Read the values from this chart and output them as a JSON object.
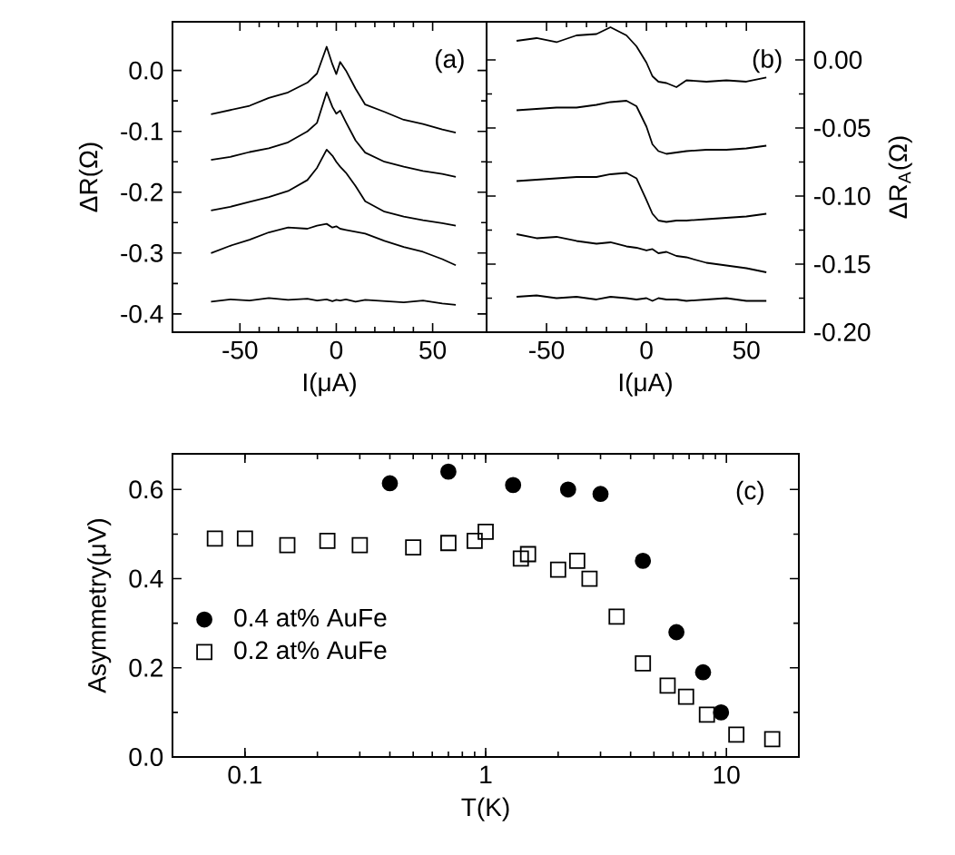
{
  "chart_data": [
    {
      "type": "line",
      "xlabel": "I(μA)",
      "ylabel": "ΔR(Ω)",
      "annotations": [
        "(a)"
      ],
      "xlim": [
        -85,
        78
      ],
      "ylim": [
        -0.43,
        0.08
      ],
      "xticks": [
        -50,
        0,
        50
      ],
      "yticks": [
        {
          "value": 0,
          "label": "0.0"
        },
        -0.1,
        -0.2,
        -0.3,
        -0.4
      ],
      "grid": false,
      "legend": false,
      "marker": "none",
      "line_style": "solid",
      "series": [
        {
          "color": "#000000",
          "x": [
            -65,
            -55,
            -45,
            -35,
            -25,
            -15,
            -10,
            -5,
            -2,
            0,
            2,
            5,
            10,
            15,
            25,
            35,
            45,
            55,
            62
          ],
          "values": [
            -0.072,
            -0.065,
            -0.058,
            -0.045,
            -0.036,
            -0.02,
            -0.005,
            0.039,
            0.01,
            -0.006,
            0.014,
            0.0,
            -0.03,
            -0.056,
            -0.068,
            -0.081,
            -0.088,
            -0.097,
            -0.102
          ]
        },
        {
          "color": "#000000",
          "x": [
            -65,
            -55,
            -45,
            -35,
            -25,
            -15,
            -10,
            -5,
            -2,
            0,
            2,
            5,
            10,
            15,
            25,
            35,
            45,
            55,
            62
          ],
          "values": [
            -0.147,
            -0.142,
            -0.134,
            -0.128,
            -0.118,
            -0.1,
            -0.086,
            -0.036,
            -0.06,
            -0.071,
            -0.066,
            -0.085,
            -0.115,
            -0.135,
            -0.15,
            -0.158,
            -0.165,
            -0.17,
            -0.175
          ]
        },
        {
          "color": "#000000",
          "x": [
            -65,
            -55,
            -45,
            -35,
            -25,
            -15,
            -10,
            -5,
            -2,
            0,
            2,
            5,
            10,
            15,
            25,
            35,
            45,
            55,
            62
          ],
          "values": [
            -0.23,
            -0.224,
            -0.216,
            -0.208,
            -0.198,
            -0.18,
            -0.16,
            -0.13,
            -0.14,
            -0.15,
            -0.158,
            -0.168,
            -0.19,
            -0.215,
            -0.232,
            -0.24,
            -0.246,
            -0.251,
            -0.255
          ]
        },
        {
          "color": "#000000",
          "x": [
            -65,
            -55,
            -45,
            -35,
            -25,
            -15,
            -10,
            -5,
            -2,
            0,
            2,
            5,
            10,
            15,
            25,
            35,
            45,
            55,
            62
          ],
          "values": [
            -0.3,
            -0.288,
            -0.278,
            -0.266,
            -0.258,
            -0.26,
            -0.255,
            -0.252,
            -0.258,
            -0.256,
            -0.26,
            -0.262,
            -0.265,
            -0.268,
            -0.28,
            -0.29,
            -0.298,
            -0.31,
            -0.32
          ]
        },
        {
          "color": "#000000",
          "x": [
            -65,
            -55,
            -45,
            -35,
            -25,
            -15,
            -10,
            -5,
            -2,
            0,
            2,
            5,
            10,
            15,
            25,
            35,
            45,
            55,
            62
          ],
          "values": [
            -0.38,
            -0.376,
            -0.378,
            -0.374,
            -0.377,
            -0.375,
            -0.378,
            -0.376,
            -0.379,
            -0.377,
            -0.378,
            -0.376,
            -0.38,
            -0.377,
            -0.379,
            -0.381,
            -0.378,
            -0.383,
            -0.385
          ]
        }
      ]
    },
    {
      "type": "line",
      "xlabel": "I(μA)",
      "y2label": "ΔR$_{A}$(Ω)",
      "annotations": [
        "(b)"
      ],
      "xlim": [
        -80,
        79
      ],
      "y2lim": [
        -0.2,
        0.028
      ],
      "xticks": [
        -50,
        0,
        50
      ],
      "y2ticks": [
        {
          "value": 0,
          "label": "0.00"
        },
        -0.05,
        {
          "value": -0.1,
          "label": "-0.10"
        },
        -0.15,
        {
          "value": -0.2,
          "label": "-0.20"
        }
      ],
      "grid": false,
      "legend": false,
      "marker": "none",
      "line_style": "solid",
      "series": [
        {
          "color": "#000000",
          "axis": "y2",
          "x": [
            -65,
            -55,
            -45,
            -35,
            -25,
            -18,
            -10,
            -5,
            0,
            3,
            6,
            10,
            15,
            20,
            30,
            40,
            50,
            60
          ],
          "values": [
            0.014,
            0.016,
            0.013,
            0.018,
            0.019,
            0.024,
            0.018,
            0.01,
            -0.002,
            -0.012,
            -0.016,
            -0.017,
            -0.02,
            -0.015,
            -0.016,
            -0.015,
            -0.016,
            -0.013
          ]
        },
        {
          "color": "#000000",
          "axis": "y2",
          "x": [
            -65,
            -55,
            -45,
            -35,
            -25,
            -18,
            -10,
            -5,
            0,
            3,
            6,
            10,
            15,
            20,
            30,
            40,
            50,
            60
          ],
          "values": [
            -0.037,
            -0.036,
            -0.035,
            -0.035,
            -0.033,
            -0.031,
            -0.03,
            -0.034,
            -0.049,
            -0.062,
            -0.067,
            -0.069,
            -0.068,
            -0.067,
            -0.066,
            -0.066,
            -0.065,
            -0.063
          ]
        },
        {
          "color": "#000000",
          "axis": "y2",
          "x": [
            -65,
            -55,
            -45,
            -35,
            -25,
            -18,
            -10,
            -5,
            0,
            3,
            6,
            10,
            15,
            20,
            30,
            40,
            50,
            60
          ],
          "values": [
            -0.089,
            -0.088,
            -0.087,
            -0.086,
            -0.086,
            -0.084,
            -0.083,
            -0.087,
            -0.103,
            -0.113,
            -0.118,
            -0.119,
            -0.118,
            -0.118,
            -0.117,
            -0.116,
            -0.115,
            -0.113
          ]
        },
        {
          "color": "#000000",
          "axis": "y2",
          "x": [
            -65,
            -55,
            -45,
            -35,
            -25,
            -18,
            -10,
            -5,
            0,
            3,
            6,
            10,
            15,
            20,
            30,
            40,
            50,
            60
          ],
          "values": [
            -0.128,
            -0.131,
            -0.13,
            -0.133,
            -0.135,
            -0.134,
            -0.137,
            -0.138,
            -0.14,
            -0.139,
            -0.142,
            -0.141,
            -0.144,
            -0.145,
            -0.149,
            -0.151,
            -0.153,
            -0.156
          ]
        },
        {
          "color": "#000000",
          "axis": "y2",
          "x": [
            -65,
            -55,
            -45,
            -35,
            -25,
            -18,
            -10,
            -5,
            0,
            3,
            6,
            10,
            15,
            20,
            30,
            40,
            50,
            60
          ],
          "values": [
            -0.174,
            -0.173,
            -0.175,
            -0.174,
            -0.176,
            -0.174,
            -0.175,
            -0.176,
            -0.175,
            -0.177,
            -0.175,
            -0.176,
            -0.176,
            -0.177,
            -0.176,
            -0.175,
            -0.177,
            -0.177
          ]
        }
      ]
    },
    {
      "type": "scatter",
      "xlabel": "T(K)",
      "ylabel": "Asymmetry(μV)",
      "annotations": [
        "(c)"
      ],
      "log": "x",
      "xlim": [
        0.05,
        20
      ],
      "ylim": [
        0,
        0.68
      ],
      "xticks": [
        0.1,
        1,
        10
      ],
      "yticks": [
        {
          "value": 0,
          "label": "0.0"
        },
        0.2,
        0.4,
        0.6
      ],
      "grid": false,
      "legend": "left",
      "series": [
        {
          "name": "0.4 at% AuFe",
          "color": "#000000",
          "marker": "circle",
          "x": [
            0.4,
            0.7,
            1.3,
            2.2,
            3.0,
            4.5,
            6.2,
            8.0,
            9.5
          ],
          "values": [
            0.614,
            0.64,
            0.61,
            0.6,
            0.59,
            0.44,
            0.28,
            0.19,
            0.1
          ]
        },
        {
          "name": "0.2 at% AuFe",
          "color": "#000000",
          "marker": "square",
          "x": [
            0.075,
            0.1,
            0.15,
            0.22,
            0.3,
            0.5,
            0.7,
            0.9,
            1.0,
            1.4,
            1.5,
            2.0,
            2.4,
            2.7,
            3.5,
            4.5,
            5.7,
            6.8,
            8.3,
            11,
            15.5
          ],
          "values": [
            0.49,
            0.49,
            0.475,
            0.485,
            0.475,
            0.47,
            0.48,
            0.485,
            0.505,
            0.445,
            0.455,
            0.42,
            0.44,
            0.4,
            0.315,
            0.21,
            0.16,
            0.135,
            0.095,
            0.05,
            0.04
          ]
        }
      ]
    }
  ]
}
